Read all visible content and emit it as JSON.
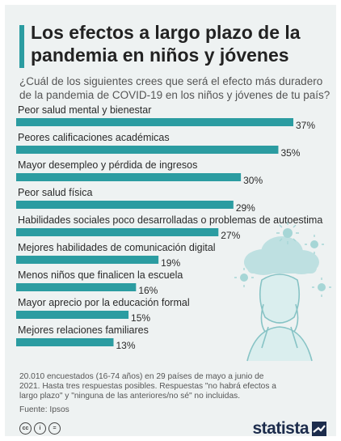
{
  "header": {
    "title": "Los efectos a largo plazo de la pandemia en niños y jóvenes",
    "subtitle": "¿Cuál de los siguientes crees que será el efecto más duradero de la pandemia de COVID-19 en los niños y jóvenes de tu país?"
  },
  "chart_data": {
    "type": "bar",
    "orientation": "horizontal",
    "title": "Los efectos a largo plazo de la pandemia en niños y jóvenes",
    "categories": [
      "Peor salud mental y bienestar",
      "Peores calificaciones académicas",
      "Mayor desempleo y pérdida de ingresos",
      "Peor salud física",
      "Habilidades sociales poco desarrolladas o problemas de autoestima",
      "Mejores habilidades de comunicación digital",
      "Menos niños que finalicen la escuela",
      "Mayor aprecio por la educación formal",
      "Mejores relaciones familiares"
    ],
    "values": [
      37,
      35,
      30,
      29,
      27,
      19,
      16,
      15,
      13
    ],
    "value_labels": [
      "37%",
      "35%",
      "30%",
      "29%",
      "27%",
      "19%",
      "16%",
      "15%",
      "13%"
    ],
    "unit": "%",
    "bar_color": "#2b9ca1",
    "grid": false
  },
  "footer": {
    "note": "20.010 encuestados (16-74 años) en 29 países de mayo a junio de 2021. Hasta tres respuestas posibles. Respuestas \"no habrá efectos a largo plazo\" y \"ninguna de las anteriores/no sé\" no incluidas.",
    "source": "Fuente: Ipsos",
    "brand": "statista",
    "license_icons": [
      "cc",
      "i",
      "="
    ]
  },
  "colors": {
    "accent": "#2b9ca1",
    "background": "#eef2f2",
    "title": "#222222"
  }
}
